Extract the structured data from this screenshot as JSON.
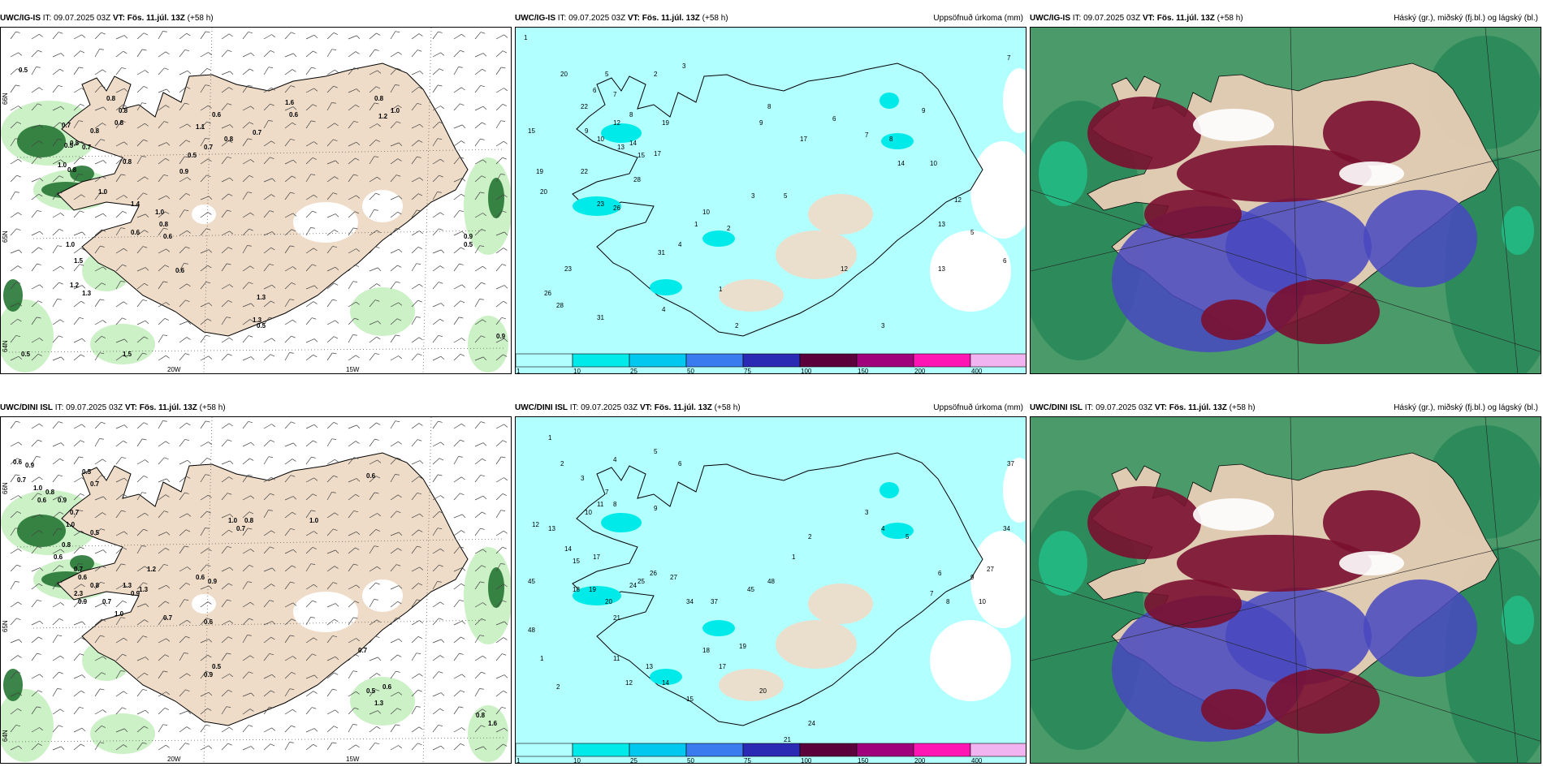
{
  "panels": [
    {
      "id": "tl",
      "source": "UWC/IG-IS",
      "it": "IT: 09.07.2025 03Z",
      "vt": "VT: Fös. 11.júl. 13Z",
      "lead": "(+58 h)",
      "right": "",
      "lon_labels": [
        "20W",
        "15W"
      ],
      "lat_labels": [
        "66N",
        "65N",
        "64N"
      ],
      "values": [
        "0.5",
        "0.8",
        "0.8",
        "0.8",
        "0.8",
        "0.7",
        "0.5",
        "1.0",
        "0.8",
        "0.8",
        "1.0",
        "1.0",
        "0.6",
        "1.0",
        "1.5",
        "1.2",
        "1.3",
        "0.5",
        "1.1",
        "0.6",
        "0.7",
        "0.8",
        "0.7",
        "0.9",
        "0.8",
        "0.6",
        "0.8",
        "1.0",
        "1.2",
        "1.6",
        "0.6",
        "0.9",
        "0.5",
        "0.9",
        "1.3",
        "1.3",
        "0.5",
        "0.6",
        "1.5",
        "0.5",
        "0.8",
        "0.7",
        "1.4"
      ]
    },
    {
      "id": "tm",
      "source": "UWC/IG-IS",
      "it": "IT: 09.07.2025 03Z",
      "vt": "VT: Fös. 11.júl. 13Z",
      "lead": "(+58 h)",
      "right": "Uppsöfnuð úrkoma (mm)",
      "values": [
        "1",
        "2",
        "3",
        "5",
        "6",
        "7",
        "8",
        "9",
        "10",
        "12",
        "13",
        "14",
        "15",
        "17",
        "19",
        "20",
        "22",
        "23",
        "26",
        "28",
        "31",
        "4"
      ],
      "legend": [
        "1",
        "10",
        "25",
        "50",
        "75",
        "100",
        "150",
        "200",
        "400"
      ]
    },
    {
      "id": "tr",
      "source": "UWC/IG-IS",
      "it": "IT: 09.07.2025 03Z",
      "vt": "VT: Fös. 11.júl. 13Z",
      "lead": "(+58 h)",
      "right": "Háský (gr.), miðský (fj.bl.) og lágský (bl.)"
    },
    {
      "id": "bl",
      "source": "UWC/DINI ISL",
      "it": "IT: 09.07.2025 03Z",
      "vt": "VT: Fös. 11.júl. 13Z",
      "lead": "(+58 h)",
      "right": "",
      "lon_labels": [
        "20W",
        "15W"
      ],
      "lat_labels": [
        "66N",
        "65N",
        "64N"
      ],
      "values": [
        "0.6",
        "0.9",
        "0.5",
        "0.7",
        "0.7",
        "1.0",
        "0.8",
        "0.9",
        "0.7",
        "0.6",
        "1.0",
        "0.5",
        "0.8",
        "0.6",
        "0.7",
        "0.8",
        "0.6",
        "1.3",
        "2.3",
        "0.9",
        "0.7",
        "1.0",
        "0.9",
        "1.3",
        "1.2",
        "0.7",
        "0.6",
        "0.9",
        "0.6",
        "1.0",
        "0.8",
        "0.7",
        "0.5",
        "0.9",
        "1.0",
        "0.6",
        "0.7",
        "0.5",
        "0.6",
        "1.3",
        "0.8",
        "1.6"
      ]
    },
    {
      "id": "bm",
      "source": "UWC/DINI ISL",
      "it": "IT: 09.07.2025 03Z",
      "vt": "VT: Fös. 11.júl. 13Z",
      "lead": "(+58 h)",
      "right": "Uppsöfnuð úrkoma (mm)",
      "values": [
        "1",
        "2",
        "3",
        "4",
        "5",
        "6",
        "7",
        "8",
        "9",
        "10",
        "11",
        "12",
        "13",
        "14",
        "15",
        "17",
        "18",
        "19",
        "20",
        "21",
        "24",
        "25",
        "26",
        "27",
        "34",
        "37",
        "45",
        "48"
      ],
      "legend": [
        "1",
        "10",
        "25",
        "50",
        "75",
        "100",
        "150",
        "200",
        "400"
      ]
    },
    {
      "id": "br",
      "source": "UWC/DINI ISL",
      "it": "IT: 09.07.2025 03Z",
      "vt": "VT: Fös. 11.júl. 13Z",
      "lead": "(+58 h)",
      "right": "Háský (gr.), miðský (fj.bl.) og lágský (bl.)"
    }
  ],
  "legend_colors": [
    "#b2ffff",
    "#00eaea",
    "#00c8ee",
    "#3a7cf0",
    "#2a2ab4",
    "#5c003c",
    "#a0007c",
    "#ff14b4",
    "#f2b4f0"
  ],
  "colors": {
    "land": "#efdcc8",
    "sea": "#ffffff",
    "rain_light": "#c6efc0",
    "rain_mid": "#80d880",
    "rain_dark": "#1a6e2a",
    "precip_light": "#b2ffff",
    "precip_mid": "#00eaea",
    "cloud_high": "#4a9a6a",
    "cloud_mid": "#4848c0",
    "cloud_low": "#7a1030"
  }
}
